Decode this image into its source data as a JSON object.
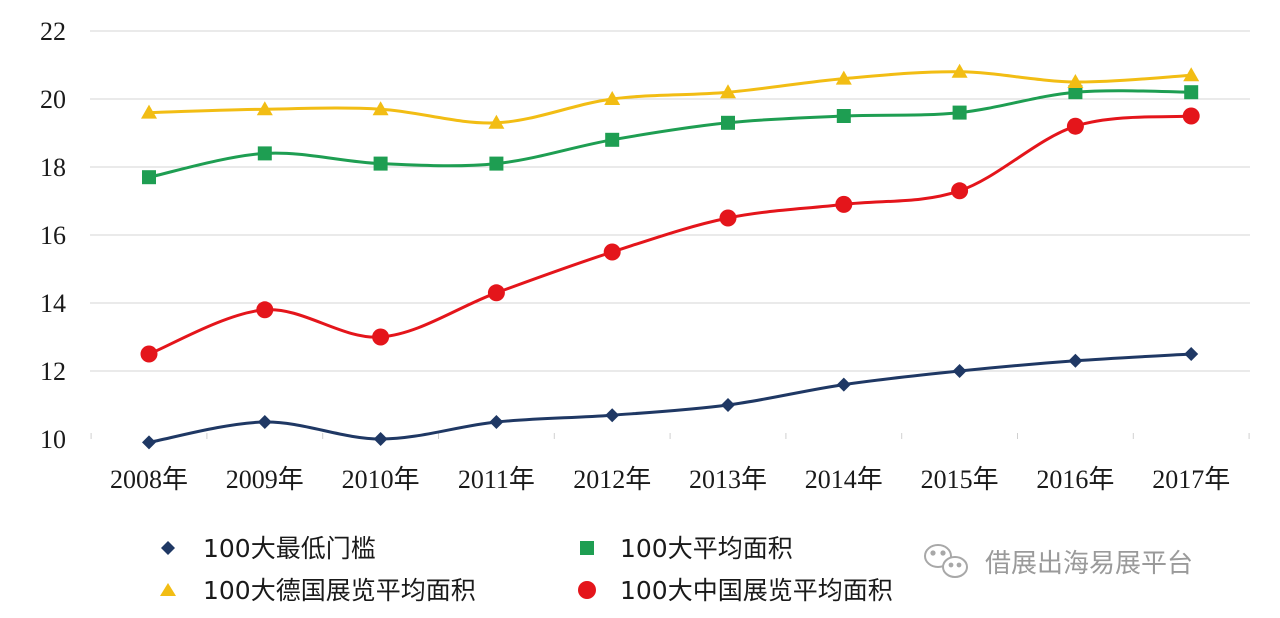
{
  "chart_data": {
    "type": "line",
    "categories": [
      "2008年",
      "2009年",
      "2010年",
      "2011年",
      "2012年",
      "2013年",
      "2014年",
      "2015年",
      "2016年",
      "2017年"
    ],
    "ylim": [
      10,
      22
    ],
    "yticks": [
      "10",
      "12",
      "14",
      "16",
      "18",
      "20",
      "22"
    ],
    "grid": true,
    "series": [
      {
        "name": "100大最低门槛",
        "color": "#1f3864",
        "marker": "diamond",
        "values": [
          9.9,
          10.5,
          10.0,
          10.5,
          10.7,
          11.0,
          11.6,
          12.0,
          12.3,
          12.5
        ]
      },
      {
        "name": "100大平均面积",
        "color": "#1e9e52",
        "marker": "square",
        "values": [
          17.7,
          18.4,
          18.1,
          18.1,
          18.8,
          19.3,
          19.5,
          19.6,
          20.2,
          20.2
        ]
      },
      {
        "name": "100大德国展览平均面积",
        "color": "#f2bd14",
        "marker": "triangle",
        "values": [
          19.6,
          19.7,
          19.7,
          19.3,
          20.0,
          20.2,
          20.6,
          20.8,
          20.5,
          20.7
        ]
      },
      {
        "name": "100大中国展览平均面积",
        "color": "#e4151b",
        "marker": "circle",
        "values": [
          12.5,
          13.8,
          13.0,
          14.3,
          15.5,
          16.5,
          16.9,
          17.3,
          19.2,
          19.5
        ]
      }
    ],
    "legend_position": "bottom"
  },
  "watermark": {
    "text": "借展出海易展平台",
    "icon": "wechat-icon"
  }
}
